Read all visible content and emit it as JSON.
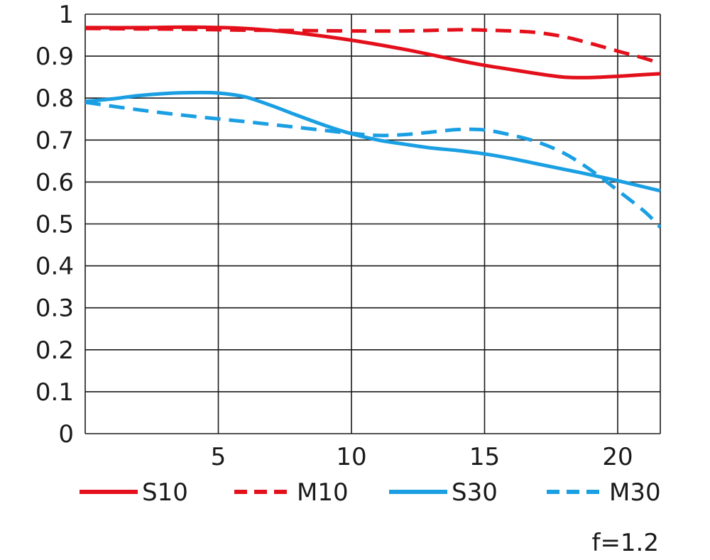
{
  "chart_data": {
    "type": "line",
    "title": "",
    "xlabel": "",
    "ylabel": "",
    "xlim": [
      0,
      21.6
    ],
    "ylim": [
      0,
      1
    ],
    "x_ticks": [
      5,
      10,
      15,
      20
    ],
    "x_tick_labels": [
      "5",
      "10",
      "15",
      "20"
    ],
    "y_ticks": [
      0,
      0.1,
      0.2,
      0.3,
      0.4,
      0.5,
      0.6,
      0.7,
      0.8,
      0.9,
      1
    ],
    "y_tick_labels": [
      "0",
      "0.1",
      "0.2",
      "0.3",
      "0.4",
      "0.5",
      "0.6",
      "0.7",
      "0.8",
      "0.9",
      "1"
    ],
    "grid": true,
    "legend_position": "bottom",
    "note": "f=1.2",
    "series": [
      {
        "name": "S10",
        "color": "#e3101b",
        "dash": "solid",
        "x": [
          0,
          2,
          4,
          6,
          8,
          10,
          12,
          14,
          15,
          16,
          17,
          18,
          19,
          20,
          21,
          21.6
        ],
        "y": [
          0.968,
          0.968,
          0.969,
          0.966,
          0.955,
          0.938,
          0.916,
          0.89,
          0.878,
          0.868,
          0.858,
          0.85,
          0.849,
          0.852,
          0.856,
          0.858
        ]
      },
      {
        "name": "M10",
        "color": "#e3101b",
        "dash": "dashed",
        "x": [
          0,
          2,
          4,
          6,
          8,
          10,
          12,
          14,
          15,
          16,
          17,
          18,
          19,
          20,
          21,
          21.6
        ],
        "y": [
          0.966,
          0.965,
          0.964,
          0.962,
          0.961,
          0.96,
          0.96,
          0.963,
          0.962,
          0.96,
          0.956,
          0.946,
          0.93,
          0.912,
          0.895,
          0.882
        ]
      },
      {
        "name": "S30",
        "color": "#1a9fe3",
        "dash": "solid",
        "x": [
          0,
          1,
          2,
          3,
          4,
          5,
          6,
          7,
          8,
          9,
          10,
          11,
          12,
          13,
          14,
          15,
          16,
          17,
          18,
          19,
          20,
          21,
          21.6
        ],
        "y": [
          0.792,
          0.798,
          0.806,
          0.811,
          0.813,
          0.812,
          0.803,
          0.782,
          0.758,
          0.735,
          0.715,
          0.7,
          0.69,
          0.681,
          0.675,
          0.667,
          0.656,
          0.643,
          0.63,
          0.617,
          0.603,
          0.588,
          0.579
        ]
      },
      {
        "name": "M30",
        "color": "#1a9fe3",
        "dash": "dashed",
        "x": [
          0,
          2,
          4,
          6,
          8,
          10,
          11,
          12,
          13,
          14,
          15,
          16,
          17,
          18,
          19,
          20,
          21,
          21.6
        ],
        "y": [
          0.79,
          0.772,
          0.757,
          0.744,
          0.73,
          0.716,
          0.711,
          0.713,
          0.719,
          0.725,
          0.724,
          0.712,
          0.695,
          0.668,
          0.628,
          0.58,
          0.53,
          0.492
        ]
      }
    ]
  }
}
